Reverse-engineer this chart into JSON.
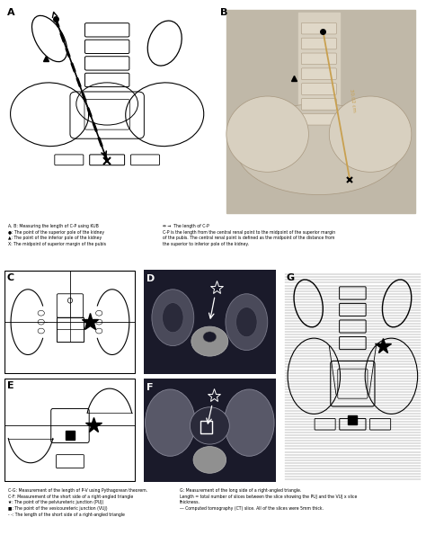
{
  "background": "#ffffff",
  "panel_A_label": "A",
  "panel_B_label": "B",
  "panel_C_label": "C",
  "panel_D_label": "D",
  "panel_E_label": "E",
  "panel_F_label": "F",
  "panel_G_label": "G",
  "measure_text": "30.02 cm",
  "xray_color": "#b8b0a0",
  "orange_line": "#c8a050",
  "leg1_left": "A, B: Measuring the length of C-P using KUB\n●: The point of the superior pole of the kidney\n▲: The point of the inferior pole of the kidney\nX: The midpoint of superior margin of the pubis",
  "leg1_right": "⇔ →  The length of C-P\nC-P is the length from the central renal point to the midpoint of the superior margin\nof the pubis. The central renal point is defined as the midpoint of the distance from\nthe superior to inferior pole of the kidney.",
  "leg2_left": "C-G: Measurement of the length of P-V using Pythagorean theorem.\nC-F: Measurement of the short side of a right-angled triangle\n★: The point of the pelviureteric junction (PUJ)\n■: The point of the vesicoureteric junction (VUJ)\n- -: The length of the short side of a right-angled triangle",
  "leg2_right": "G: Measurement of the long side of a right-angled triangle.\nLength = total number of slices between the slice showing the PUJ and the VUJ x slice\nthickness.\n― Computed tomography (CT) slice. All of the slices were 5mm thick."
}
